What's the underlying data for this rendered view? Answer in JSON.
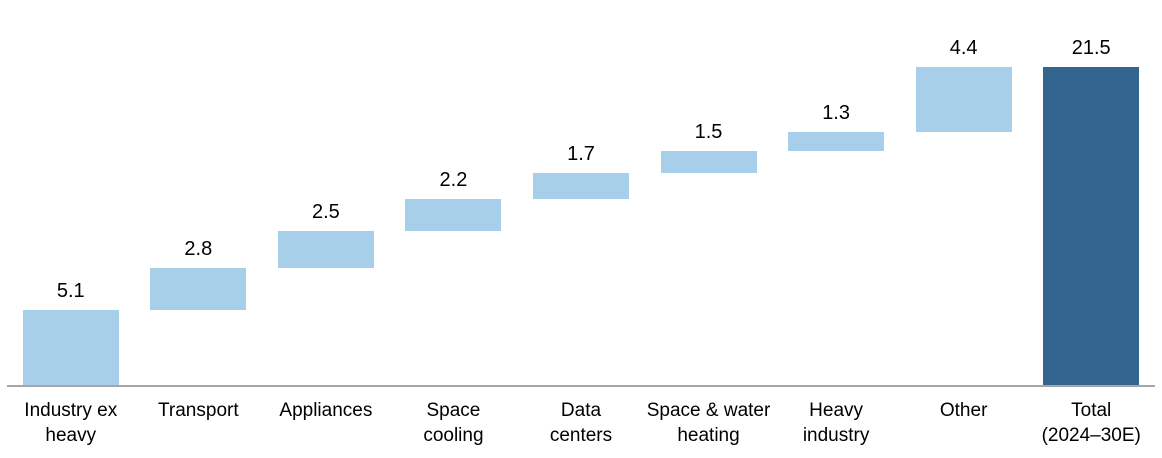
{
  "chart_data": {
    "type": "bar",
    "subtype": "waterfall",
    "title": "",
    "xlabel": "",
    "ylabel": "",
    "legend": "none",
    "grid": false,
    "ylim": [
      0,
      21.5
    ],
    "categories": [
      "Industry ex\nheavy",
      "Transport",
      "Appliances",
      "Space\ncooling",
      "Data\ncenters",
      "Space & water\nheating",
      "Heavy\nindustry",
      "Other",
      "Total\n(2024–30E)"
    ],
    "values": [
      5.1,
      2.8,
      2.5,
      2.2,
      1.7,
      1.5,
      1.3,
      4.4,
      21.5
    ],
    "data_labels": [
      "5.1",
      "2.8",
      "2.5",
      "2.2",
      "1.7",
      "1.5",
      "1.3",
      "4.4",
      "21.5"
    ],
    "total_indices": [
      8
    ],
    "colors": {
      "increment_bar": "#a8cfe9",
      "total_bar": "#32658f",
      "axis_line": "#a6a6a6",
      "label_text": "#000000",
      "background": "#ffffff"
    }
  }
}
